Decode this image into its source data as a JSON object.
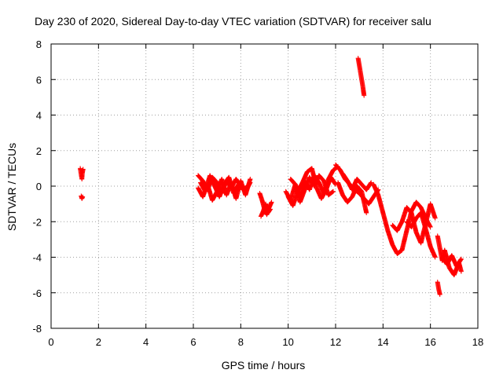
{
  "chart_data": {
    "type": "scatter",
    "title": "Day 230 of 2020, Sidereal Day-to-day VTEC variation (SDTVAR) for receiver salu",
    "xlabel": "GPS time / hours",
    "ylabel": "SDTVAR / TECUs",
    "xlim": [
      0,
      18
    ],
    "ylim": [
      -8,
      8
    ],
    "xticks": [
      "0",
      "2",
      "4",
      "6",
      "8",
      "10",
      "12",
      "14",
      "16",
      "18"
    ],
    "yticks": [
      "8",
      "6",
      "4",
      "2",
      "0",
      "-2",
      "-4",
      "-6",
      "-8"
    ],
    "grid": true,
    "marker": "plus",
    "color": "#ff0000",
    "segments": [
      {
        "x": [
          1.23,
          1.25,
          1.28,
          1.3,
          1.32,
          1.35
        ],
        "y": [
          1.0,
          0.8,
          0.55,
          0.4,
          0.75,
          0.95
        ]
      },
      {
        "x": [
          1.27,
          1.3,
          1.33
        ],
        "y": [
          -0.55,
          -0.7,
          -0.6
        ]
      },
      {
        "x": [
          6.2,
          6.4,
          6.6,
          6.8,
          7.0,
          7.2,
          7.4,
          7.6,
          7.8,
          8.0,
          8.2,
          8.4
        ],
        "y": [
          0.6,
          0.3,
          -0.2,
          0.5,
          0.2,
          -0.4,
          0.3,
          -0.1,
          0.4,
          0.0,
          -0.3,
          0.2
        ]
      },
      {
        "x": [
          6.2,
          6.4,
          6.6,
          6.8,
          7.0,
          7.2,
          7.4,
          7.6,
          7.8,
          8.0,
          8.2,
          8.4
        ],
        "y": [
          -0.1,
          -0.6,
          0.1,
          -0.8,
          -0.3,
          0.4,
          -0.5,
          0.2,
          -0.7,
          0.3,
          -0.5,
          0.4
        ]
      },
      {
        "x": [
          6.3,
          6.5,
          6.7,
          6.9,
          7.1,
          7.3,
          7.5,
          7.7,
          7.9,
          8.1,
          8.3
        ],
        "y": [
          0.2,
          -0.3,
          0.6,
          0.0,
          -0.6,
          0.1,
          0.5,
          -0.4,
          0.1,
          -0.2,
          0.0
        ]
      },
      {
        "x": [
          8.8,
          8.9,
          9.0,
          9.1,
          9.2,
          9.3
        ],
        "y": [
          -0.4,
          -0.8,
          -1.3,
          -1.6,
          -1.2,
          -0.9
        ]
      },
      {
        "x": [
          8.85,
          8.95,
          9.05,
          9.15,
          9.25
        ],
        "y": [
          -1.7,
          -1.4,
          -1.0,
          -1.5,
          -1.3
        ]
      },
      {
        "x": [
          9.9,
          10.1,
          10.3,
          10.5,
          10.7,
          10.9,
          11.1,
          11.3,
          11.5,
          11.7,
          11.9,
          12.1
        ],
        "y": [
          -0.3,
          -0.8,
          0.1,
          -0.6,
          0.3,
          -0.2,
          0.6,
          0.2,
          -0.4,
          0.4,
          0.9,
          1.1
        ]
      },
      {
        "x": [
          10.0,
          10.2,
          10.4,
          10.6,
          10.8,
          11.0,
          11.2,
          11.4,
          11.6,
          11.8,
          12.0
        ],
        "y": [
          -0.6,
          -1.1,
          -0.3,
          0.2,
          0.8,
          1.0,
          -0.1,
          -0.7,
          -0.2,
          0.5,
          0.1
        ]
      },
      {
        "x": [
          10.1,
          10.3,
          10.5,
          10.7,
          10.9,
          11.1,
          11.3,
          11.5,
          11.7,
          11.9
        ],
        "y": [
          0.4,
          0.1,
          -0.9,
          -0.2,
          0.5,
          0.0,
          0.6,
          0.3,
          -0.5,
          -0.3
        ]
      },
      {
        "x": [
          12.0,
          12.2,
          12.4,
          12.6,
          12.8,
          13.0,
          13.2,
          13.4,
          13.6,
          13.8
        ],
        "y": [
          1.2,
          0.9,
          0.4,
          0.1,
          -0.2,
          -0.4,
          -0.7,
          -1.0,
          -0.6,
          -0.2
        ]
      },
      {
        "x": [
          12.1,
          12.3,
          12.5,
          12.7,
          12.9,
          13.1,
          13.3
        ],
        "y": [
          0.2,
          -0.5,
          -0.9,
          -0.6,
          0.0,
          -0.3,
          -1.5
        ]
      },
      {
        "x": [
          12.3,
          12.5,
          12.7,
          12.9,
          13.1,
          13.3,
          13.5
        ],
        "y": [
          0.7,
          0.3,
          -0.2,
          0.4,
          0.1,
          -0.2,
          0.2
        ]
      },
      {
        "x": [
          12.95,
          13.0,
          13.05,
          13.1,
          13.15,
          13.2
        ],
        "y": [
          7.2,
          6.8,
          6.4,
          6.0,
          5.6,
          5.1
        ]
      },
      {
        "x": [
          13.6,
          13.8,
          14.0,
          14.2,
          14.4,
          14.6,
          14.8,
          15.0,
          15.2,
          15.4,
          15.6,
          15.8,
          16.0
        ],
        "y": [
          0.1,
          -0.5,
          -1.5,
          -2.5,
          -3.3,
          -3.8,
          -3.6,
          -2.5,
          -1.4,
          -0.9,
          -1.2,
          -1.8,
          -2.3
        ]
      },
      {
        "x": [
          14.4,
          14.6,
          14.8,
          15.0,
          15.2,
          15.4,
          15.6,
          15.8,
          16.0,
          16.2
        ],
        "y": [
          -2.2,
          -2.5,
          -2.0,
          -1.2,
          -1.5,
          -2.6,
          -3.2,
          -2.1,
          -1.0,
          -1.8
        ]
      },
      {
        "x": [
          15.0,
          15.2,
          15.4,
          15.6,
          15.8,
          16.0,
          16.2
        ],
        "y": [
          -2.0,
          -2.3,
          -1.8,
          -1.5,
          -2.4,
          -3.4,
          -4.0
        ]
      },
      {
        "x": [
          16.3,
          16.4,
          16.5,
          16.6,
          16.8,
          17.0,
          17.2,
          17.3
        ],
        "y": [
          -2.8,
          -3.5,
          -4.2,
          -3.6,
          -4.6,
          -5.0,
          -4.3,
          -4.8
        ]
      },
      {
        "x": [
          16.3,
          16.35,
          16.4
        ],
        "y": [
          -5.4,
          -5.8,
          -6.1
        ]
      },
      {
        "x": [
          16.5,
          16.7,
          16.9,
          17.1,
          17.3
        ],
        "y": [
          -4.0,
          -4.4,
          -3.9,
          -4.5,
          -4.1
        ]
      }
    ]
  }
}
